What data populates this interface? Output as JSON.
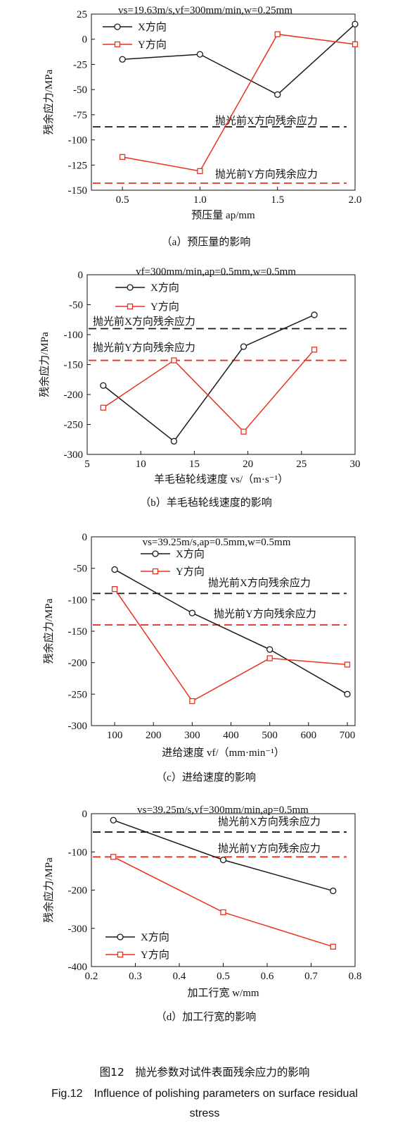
{
  "charts": [
    {
      "chart_data": {
        "type": "line",
        "params_label": "vs=19.63m/s,vf=300mm/min,w=0.25mm",
        "xlabel": "预压量 ap/mm",
        "ylabel": "残余应力/MPa",
        "xlim": [
          0.3,
          2.0
        ],
        "ylim": [
          -150,
          25
        ],
        "xticks": [
          0.5,
          1.0,
          1.5,
          2.0
        ],
        "xtick_labels": [
          "0.5",
          "1.0",
          "1.5",
          "2.0"
        ],
        "yticks": [
          25,
          0,
          -25,
          -50,
          -75,
          -100,
          -125,
          -150
        ],
        "ytick_labels": [
          "25",
          "0",
          "-25",
          "-50",
          "-75",
          "-100",
          "-125",
          "-150"
        ],
        "series": [
          {
            "name": "X方向",
            "color": "#1a1a1a",
            "marker": "circle",
            "x": [
              0.5,
              1.0,
              1.5,
              2.0
            ],
            "y": [
              -20,
              -15,
              -55,
              15
            ]
          },
          {
            "name": "Y方向",
            "color": "#e8321e",
            "marker": "square",
            "x": [
              0.5,
              1.0,
              1.5,
              2.0
            ],
            "y": [
              -117,
              -131,
              5,
              -5
            ]
          }
        ],
        "reference_lines": [
          {
            "label": "抛光前X方向残余应力",
            "value": -87,
            "color": "#1a1a1a"
          },
          {
            "label": "抛光前Y方向残余应力",
            "value": -143,
            "color": "#e8321e"
          }
        ],
        "legend": "top-left"
      },
      "caption": "（a）预压量的影响"
    },
    {
      "chart_data": {
        "type": "line",
        "params_label": "vf=300mm/min,ap=0.5mm,w=0.5mm",
        "xlabel": "羊毛毡轮线速度 vs/（m·s⁻¹）",
        "ylabel": "残余应力/MPa",
        "xlim": [
          5,
          30
        ],
        "ylim": [
          -300,
          0
        ],
        "xticks": [
          5,
          10,
          15,
          20,
          25,
          30
        ],
        "xtick_labels": [
          "5",
          "10",
          "15",
          "20",
          "25",
          "30"
        ],
        "yticks": [
          0,
          -50,
          -100,
          -150,
          -200,
          -250,
          -300
        ],
        "ytick_labels": [
          "0",
          "-50",
          "-100",
          "-150",
          "-200",
          "-250",
          "-300"
        ],
        "series": [
          {
            "name": "X方向",
            "color": "#1a1a1a",
            "marker": "circle",
            "x": [
              6.5,
              13.1,
              19.6,
              26.2
            ],
            "y": [
              -185,
              -278,
              -120,
              -67
            ]
          },
          {
            "name": "Y方向",
            "color": "#e8321e",
            "marker": "square",
            "x": [
              6.5,
              13.1,
              19.6,
              26.2
            ],
            "y": [
              -222,
              -143,
              -262,
              -125
            ]
          }
        ],
        "reference_lines": [
          {
            "label": "抛光前X方向残余应力",
            "value": -90,
            "color": "#1a1a1a"
          },
          {
            "label": "抛光前Y方向残余应力",
            "value": -143,
            "color": "#e8321e"
          }
        ],
        "legend": "top-left"
      },
      "caption": "（b）羊毛毡轮线速度的影响"
    },
    {
      "chart_data": {
        "type": "line",
        "params_label": "vs=39.25m/s,ap=0.5mm,w=0.5mm",
        "xlabel": "进给速度 vf/（mm·min⁻¹）",
        "ylabel": "残余应力/MPa",
        "xlim": [
          40,
          720
        ],
        "ylim": [
          -300,
          0
        ],
        "xticks": [
          100,
          200,
          300,
          400,
          500,
          600,
          700
        ],
        "xtick_labels": [
          "100",
          "200",
          "300",
          "400",
          "500",
          "600",
          "700"
        ],
        "yticks": [
          0,
          -50,
          -100,
          -150,
          -200,
          -250,
          -300
        ],
        "ytick_labels": [
          "0",
          "-50",
          "-100",
          "-150",
          "-200",
          "-250",
          "-300"
        ],
        "series": [
          {
            "name": "X方向",
            "color": "#1a1a1a",
            "marker": "circle",
            "x": [
              100,
              300,
              500,
              700
            ],
            "y": [
              -52,
              -121,
              -179,
              -250
            ]
          },
          {
            "name": "Y方向",
            "color": "#e8321e",
            "marker": "square",
            "x": [
              100,
              300,
              500,
              700
            ],
            "y": [
              -83,
              -261,
              -193,
              -203
            ]
          }
        ],
        "reference_lines": [
          {
            "label": "抛光前X方向残余应力",
            "value": -90,
            "color": "#1a1a1a"
          },
          {
            "label": "抛光前Y方向残余应力",
            "value": -140,
            "color": "#e8321e"
          }
        ],
        "legend": "top-center"
      },
      "caption": "（c）进给速度的影响"
    },
    {
      "chart_data": {
        "type": "line",
        "params_label": "vs=39.25m/s,vf=300mm/min,ap=0.5mm",
        "xlabel": "加工行宽 w/mm",
        "ylabel": "残余应力/MPa",
        "xlim": [
          0.2,
          0.8
        ],
        "ylim": [
          -400,
          0
        ],
        "xticks": [
          0.2,
          0.3,
          0.4,
          0.5,
          0.6,
          0.7,
          0.8
        ],
        "xtick_labels": [
          "0.2",
          "0.3",
          "0.4",
          "0.5",
          "0.6",
          "0.7",
          "0.8"
        ],
        "yticks": [
          0,
          -100,
          -200,
          -300,
          -400
        ],
        "ytick_labels": [
          "0",
          "-100",
          "-200",
          "-300",
          "-400"
        ],
        "series": [
          {
            "name": "X方向",
            "color": "#1a1a1a",
            "marker": "circle",
            "x": [
              0.25,
              0.5,
              0.75
            ],
            "y": [
              -17,
              -121,
              -202
            ]
          },
          {
            "name": "Y方向",
            "color": "#e8321e",
            "marker": "square",
            "x": [
              0.25,
              0.5,
              0.75
            ],
            "y": [
              -113,
              -258,
              -348
            ]
          }
        ],
        "reference_lines": [
          {
            "label": "抛光前X方向残余应力",
            "value": -48,
            "color": "#1a1a1a"
          },
          {
            "label": "抛光前Y方向残余应力",
            "value": -113,
            "color": "#e8321e"
          }
        ],
        "legend": "bottom-left"
      },
      "caption": "（d）加工行宽的影响"
    }
  ],
  "figure": {
    "caption_cn": "图12　抛光参数对试件表面残余应力的影响",
    "caption_en_1": "Fig.12　Influence of polishing parameters on surface residual",
    "caption_en_2": "stress"
  }
}
